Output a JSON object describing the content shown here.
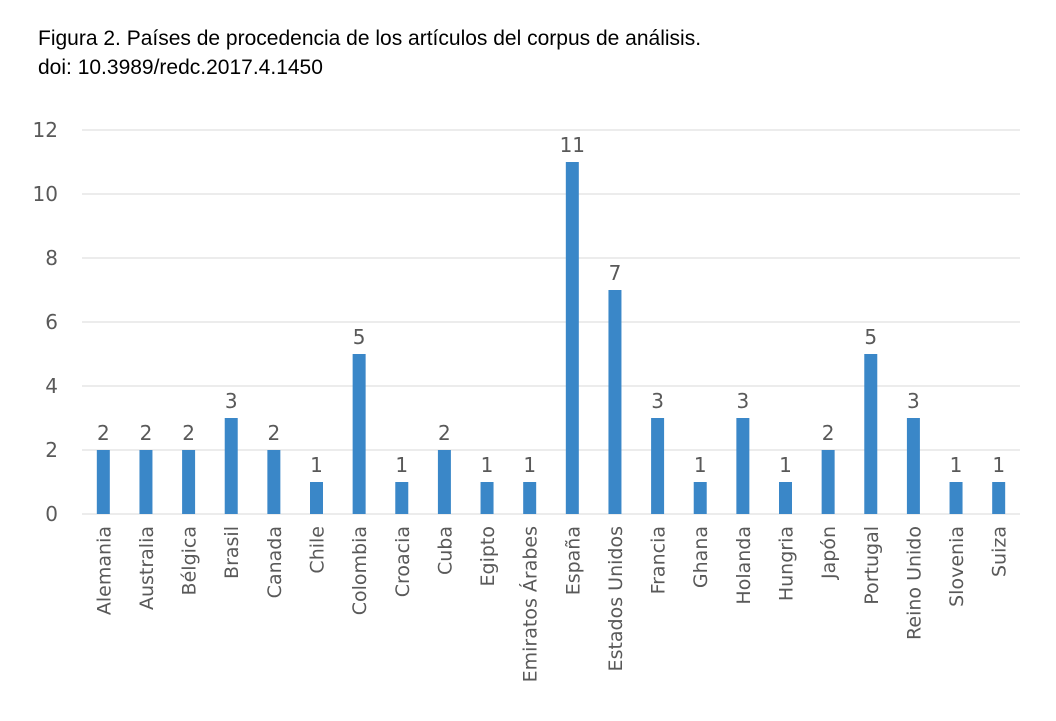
{
  "figure": {
    "caption_line1": "Figura 2. Países de procedencia de los artículos del corpus de análisis.",
    "caption_line2": "doi: 10.3989/redc.2017.4.1450"
  },
  "chart_data": {
    "type": "bar",
    "title": "",
    "xlabel": "",
    "ylabel": "",
    "ylim": [
      0,
      12
    ],
    "yticks": [
      0,
      2,
      4,
      6,
      8,
      10,
      12
    ],
    "grid": true,
    "bar_color": "#3a87c8",
    "grid_color": "#d9d9d9",
    "label_color": "#595959",
    "categories": [
      "Alemania",
      "Australia",
      "Bélgica",
      "Brasil",
      "Canada",
      "Chile",
      "Colombia",
      "Croacia",
      "Cuba",
      "Egipto",
      "Emiratos Árabes",
      "España",
      "Estados Unidos",
      "Francia",
      "Ghana",
      "Holanda",
      "Hungria",
      "Japón",
      "Portugal",
      "Reino Unido",
      "Slovenia",
      "Suiza"
    ],
    "values": [
      2,
      2,
      2,
      3,
      2,
      1,
      5,
      1,
      2,
      1,
      1,
      11,
      7,
      3,
      1,
      3,
      1,
      2,
      5,
      3,
      1,
      1
    ],
    "data_labels": true
  }
}
